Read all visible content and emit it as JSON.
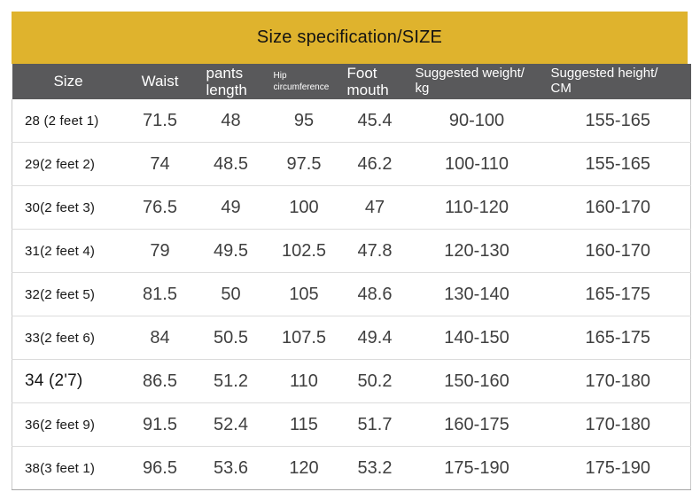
{
  "title": "Size specification/SIZE",
  "colors": {
    "banner_yellow": "#DFB32D",
    "header_gray": "#59595B",
    "header_text": "#FFFFFF",
    "title_text": "#131313",
    "size_label_text": "#161616",
    "number_text": "#3F3F3F",
    "row_divider": "#DCDCDC",
    "table_border": "#C9C9C9"
  },
  "table": {
    "columns": [
      {
        "id": "size",
        "label": "Size"
      },
      {
        "id": "waist",
        "label": "Waist"
      },
      {
        "id": "pants-length",
        "label": "pants\nlength"
      },
      {
        "id": "hip-circumference",
        "label": "Hip\ncircumference"
      },
      {
        "id": "foot-mouth",
        "label": "Foot\nmouth"
      },
      {
        "id": "suggested-weight",
        "label": "Suggested weight/\nkg"
      },
      {
        "id": "suggested-height",
        "label": "Suggested height/\nCM"
      }
    ],
    "rows": [
      [
        "28 (2 feet 1)",
        "71.5",
        "48",
        "95",
        "45.4",
        "90-100",
        "155-165"
      ],
      [
        "29(2 feet 2)",
        "74",
        "48.5",
        "97.5",
        "46.2",
        "100-110",
        "155-165"
      ],
      [
        "30(2 feet 3)",
        "76.5",
        "49",
        "100",
        "47",
        "110-120",
        "160-170"
      ],
      [
        "31(2 feet 4)",
        "79",
        "49.5",
        "102.5",
        "47.8",
        "120-130",
        "160-170"
      ],
      [
        "32(2 feet 5)",
        "81.5",
        "50",
        "105",
        "48.6",
        "130-140",
        "165-175"
      ],
      [
        "33(2 feet 6)",
        "84",
        "50.5",
        "107.5",
        "49.4",
        "140-150",
        "165-175"
      ],
      [
        "34 (2'7)",
        "86.5",
        "51.2",
        "110",
        "50.2",
        "150-160",
        "170-180"
      ],
      [
        "36(2 feet 9)",
        "91.5",
        "52.4",
        "115",
        "51.7",
        "160-175",
        "170-180"
      ],
      [
        "38(3 feet 1)",
        "96.5",
        "53.6",
        "120",
        "53.2",
        "175-190",
        "175-190"
      ]
    ],
    "emphasized_size_row_index": 6
  }
}
